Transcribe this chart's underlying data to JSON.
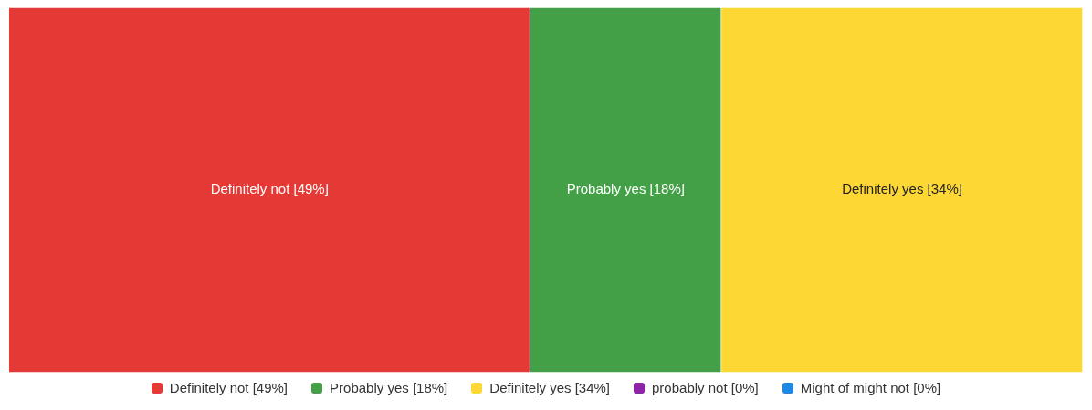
{
  "chart_data": {
    "type": "bar",
    "orientation": "horizontal",
    "stacked": true,
    "categories": [
      null
    ],
    "tick_labels": false,
    "grid": false,
    "legend": "bottom",
    "series": [
      {
        "name": "Definitely not [49%]",
        "color": "#e53935",
        "values": [
          49
        ],
        "value_labels": [
          "Definitely not [49%]"
        ]
      },
      {
        "name": "Probably yes [18%]",
        "color": "#43a047",
        "values": [
          18
        ],
        "value_labels": [
          "Probably yes [18%]"
        ]
      },
      {
        "name": "Definitely yes [34%]",
        "color": "#fdd835",
        "values": [
          34
        ],
        "value_labels": [
          "Definitely yes [34%]"
        ]
      },
      {
        "name": "probably not [0%]",
        "color": "#8e24aa",
        "values": [
          0
        ],
        "value_labels": [
          null
        ]
      },
      {
        "name": "Might of might not [0%]",
        "color": "#1e88e5",
        "values": [
          0
        ],
        "value_labels": [
          null
        ]
      }
    ]
  }
}
